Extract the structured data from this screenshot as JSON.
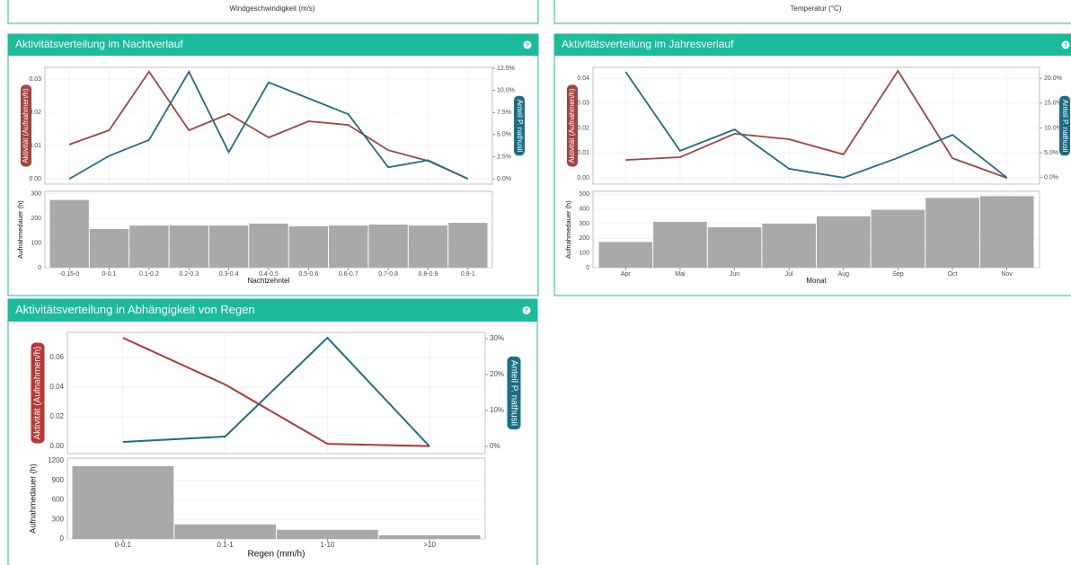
{
  "header_labels": [
    "Windgeschwindigkeit (m/s)",
    "Temperatur (°C)"
  ],
  "panels": [
    {
      "title": "Aktivitätsverteilung im Nachtverlauf",
      "icon": "?"
    },
    {
      "title": "Aktivitätsverteilung im Jahresverlauf",
      "icon": "?"
    },
    {
      "title": "Aktivitätsverteilung in Abhängigkeit von Regen",
      "icon": "?"
    }
  ],
  "chart_data": [
    {
      "type": "line",
      "ylabel": "Aktivität (Aufnahmen/h)",
      "y2label": "Anteil P. nathusii",
      "grid": true,
      "ylim": [
        -0.0016,
        0.0335
      ],
      "yticks": [
        {
          "value": 0,
          "label": "0.00"
        },
        {
          "value": 0.01,
          "label": "0.01"
        },
        {
          "value": 0.02,
          "label": "0.02"
        },
        {
          "value": 0.03,
          "label": "0.03"
        }
      ],
      "y2lim": [
        -0.6,
        12.6
      ],
      "y2ticks": [
        {
          "value": 0,
          "label": "0.0%"
        },
        {
          "value": 2.5,
          "label": "2.5%"
        },
        {
          "value": 5,
          "label": "5.0%"
        },
        {
          "value": 7.5,
          "label": "7.5%"
        },
        {
          "value": 10,
          "label": "10.0%"
        },
        {
          "value": 12.5,
          "label": "12.5%"
        }
      ],
      "series": [
        {
          "color": "#a8423e",
          "values": [
            0.0103,
            0.0146,
            0.0322,
            0.0146,
            0.0195,
            0.0124,
            0.0173,
            0.0162,
            0.0086,
            0.0054,
            0
          ]
        },
        {
          "color": "#1b6e86",
          "axis": "y2",
          "values": [
            0,
            2.6,
            4.4,
            12.1,
            3.0,
            10.9,
            9.1,
            7.3,
            1.3,
            2.1,
            0
          ]
        }
      ]
    },
    {
      "type": "bar",
      "ylabel": "Aufnahmedauer (h)",
      "xlabel": "Nachtzehntel",
      "color": "#aaa8a9",
      "grid": true,
      "categories": [
        "-0.15-0",
        "0-0.1",
        "0.1-0.2",
        "0.2-0.3",
        "0.3-0.4",
        "0.4-0.5",
        "0.5-0.6",
        "0.6-0.7",
        "0.7-0.8",
        "0.8-0.9",
        "0.9-1"
      ],
      "values": [
        275,
        157,
        171,
        171,
        171,
        179,
        168,
        171,
        175,
        171,
        182
      ],
      "ylim": [
        0,
        310
      ],
      "yticks": [
        0,
        100,
        200,
        300
      ]
    },
    {
      "type": "line",
      "ylabel": "Aktivität (Aufnahmen/h)",
      "y2label": "Anteil P. nathusii",
      "grid": true,
      "ylim": [
        -0.0025,
        0.0443
      ],
      "yticks": [
        {
          "value": 0,
          "label": "0.00"
        },
        {
          "value": 0.01,
          "label": "0.01"
        },
        {
          "value": 0.02,
          "label": "0.02"
        },
        {
          "value": 0.03,
          "label": "0.03"
        },
        {
          "value": 0.04,
          "label": "0.04"
        }
      ],
      "y2lim": [
        -1.3,
        22.2
      ],
      "y2ticks": [
        {
          "value": 0,
          "label": "0.0%"
        },
        {
          "value": 5,
          "label": "5.0%"
        },
        {
          "value": 10,
          "label": "10.0%"
        },
        {
          "value": 15,
          "label": "15.0%"
        },
        {
          "value": 20,
          "label": "20.0%"
        }
      ],
      "series": [
        {
          "color": "#a8423e",
          "values": [
            0.0072,
            0.0083,
            0.0177,
            0.0155,
            0.0094,
            0.0429,
            0.0079,
            0
          ]
        },
        {
          "color": "#1b6e86",
          "axis": "y2",
          "values": [
            21.3,
            5.4,
            9.7,
            1.8,
            0,
            4.0,
            8.6,
            0
          ]
        }
      ]
    },
    {
      "type": "bar",
      "ylabel": "Aufnahmedauer (h)",
      "xlabel": "Monat",
      "color": "#aaa8a9",
      "grid": true,
      "categories": [
        "Apr",
        "Mai",
        "Jun",
        "Jul",
        "Aug",
        "Sep",
        "Oct",
        "Nov"
      ],
      "values": [
        175,
        312,
        275,
        300,
        350,
        394,
        475,
        487
      ],
      "ylim": [
        0,
        520
      ],
      "yticks": [
        0,
        100,
        200,
        300,
        400,
        500
      ]
    },
    {
      "type": "line",
      "ylabel": "Aktivität (Aufnahmen/h)",
      "y2label": "Anteil P. nathusii",
      "grid": true,
      "ylim": [
        -0.0048,
        0.077
      ],
      "yticks": [
        {
          "value": 0,
          "label": "0.00"
        },
        {
          "value": 0.02,
          "label": "0.02"
        },
        {
          "value": 0.04,
          "label": "0.04"
        },
        {
          "value": 0.06,
          "label": "0.06"
        }
      ],
      "y2lim": [
        -2,
        31.75
      ],
      "y2ticks": [
        {
          "value": 0,
          "label": "0%"
        },
        {
          "value": 10,
          "label": "10%"
        },
        {
          "value": 20,
          "label": "20%"
        },
        {
          "value": 30,
          "label": "30%"
        }
      ],
      "series": [
        {
          "color": "#b83633",
          "values": [
            0.0733,
            0.0418,
            0.0018,
            0.0003
          ]
        },
        {
          "color": "#1b6e86",
          "axis": "y2",
          "values": [
            1.25,
            2.75,
            30.25,
            0
          ]
        }
      ]
    },
    {
      "type": "bar",
      "ylabel": "Aufnahmedauer (h)",
      "xlabel": "Regen (mm/h)",
      "color": "#aaa8a9",
      "grid": true,
      "categories": [
        "0-0.1",
        "0.1-1",
        "1-10",
        ">10"
      ],
      "values": [
        1115,
        223,
        140,
        56
      ],
      "ylim": [
        0,
        1240
      ],
      "yticks": [
        0,
        300,
        600,
        900,
        1200
      ]
    }
  ]
}
